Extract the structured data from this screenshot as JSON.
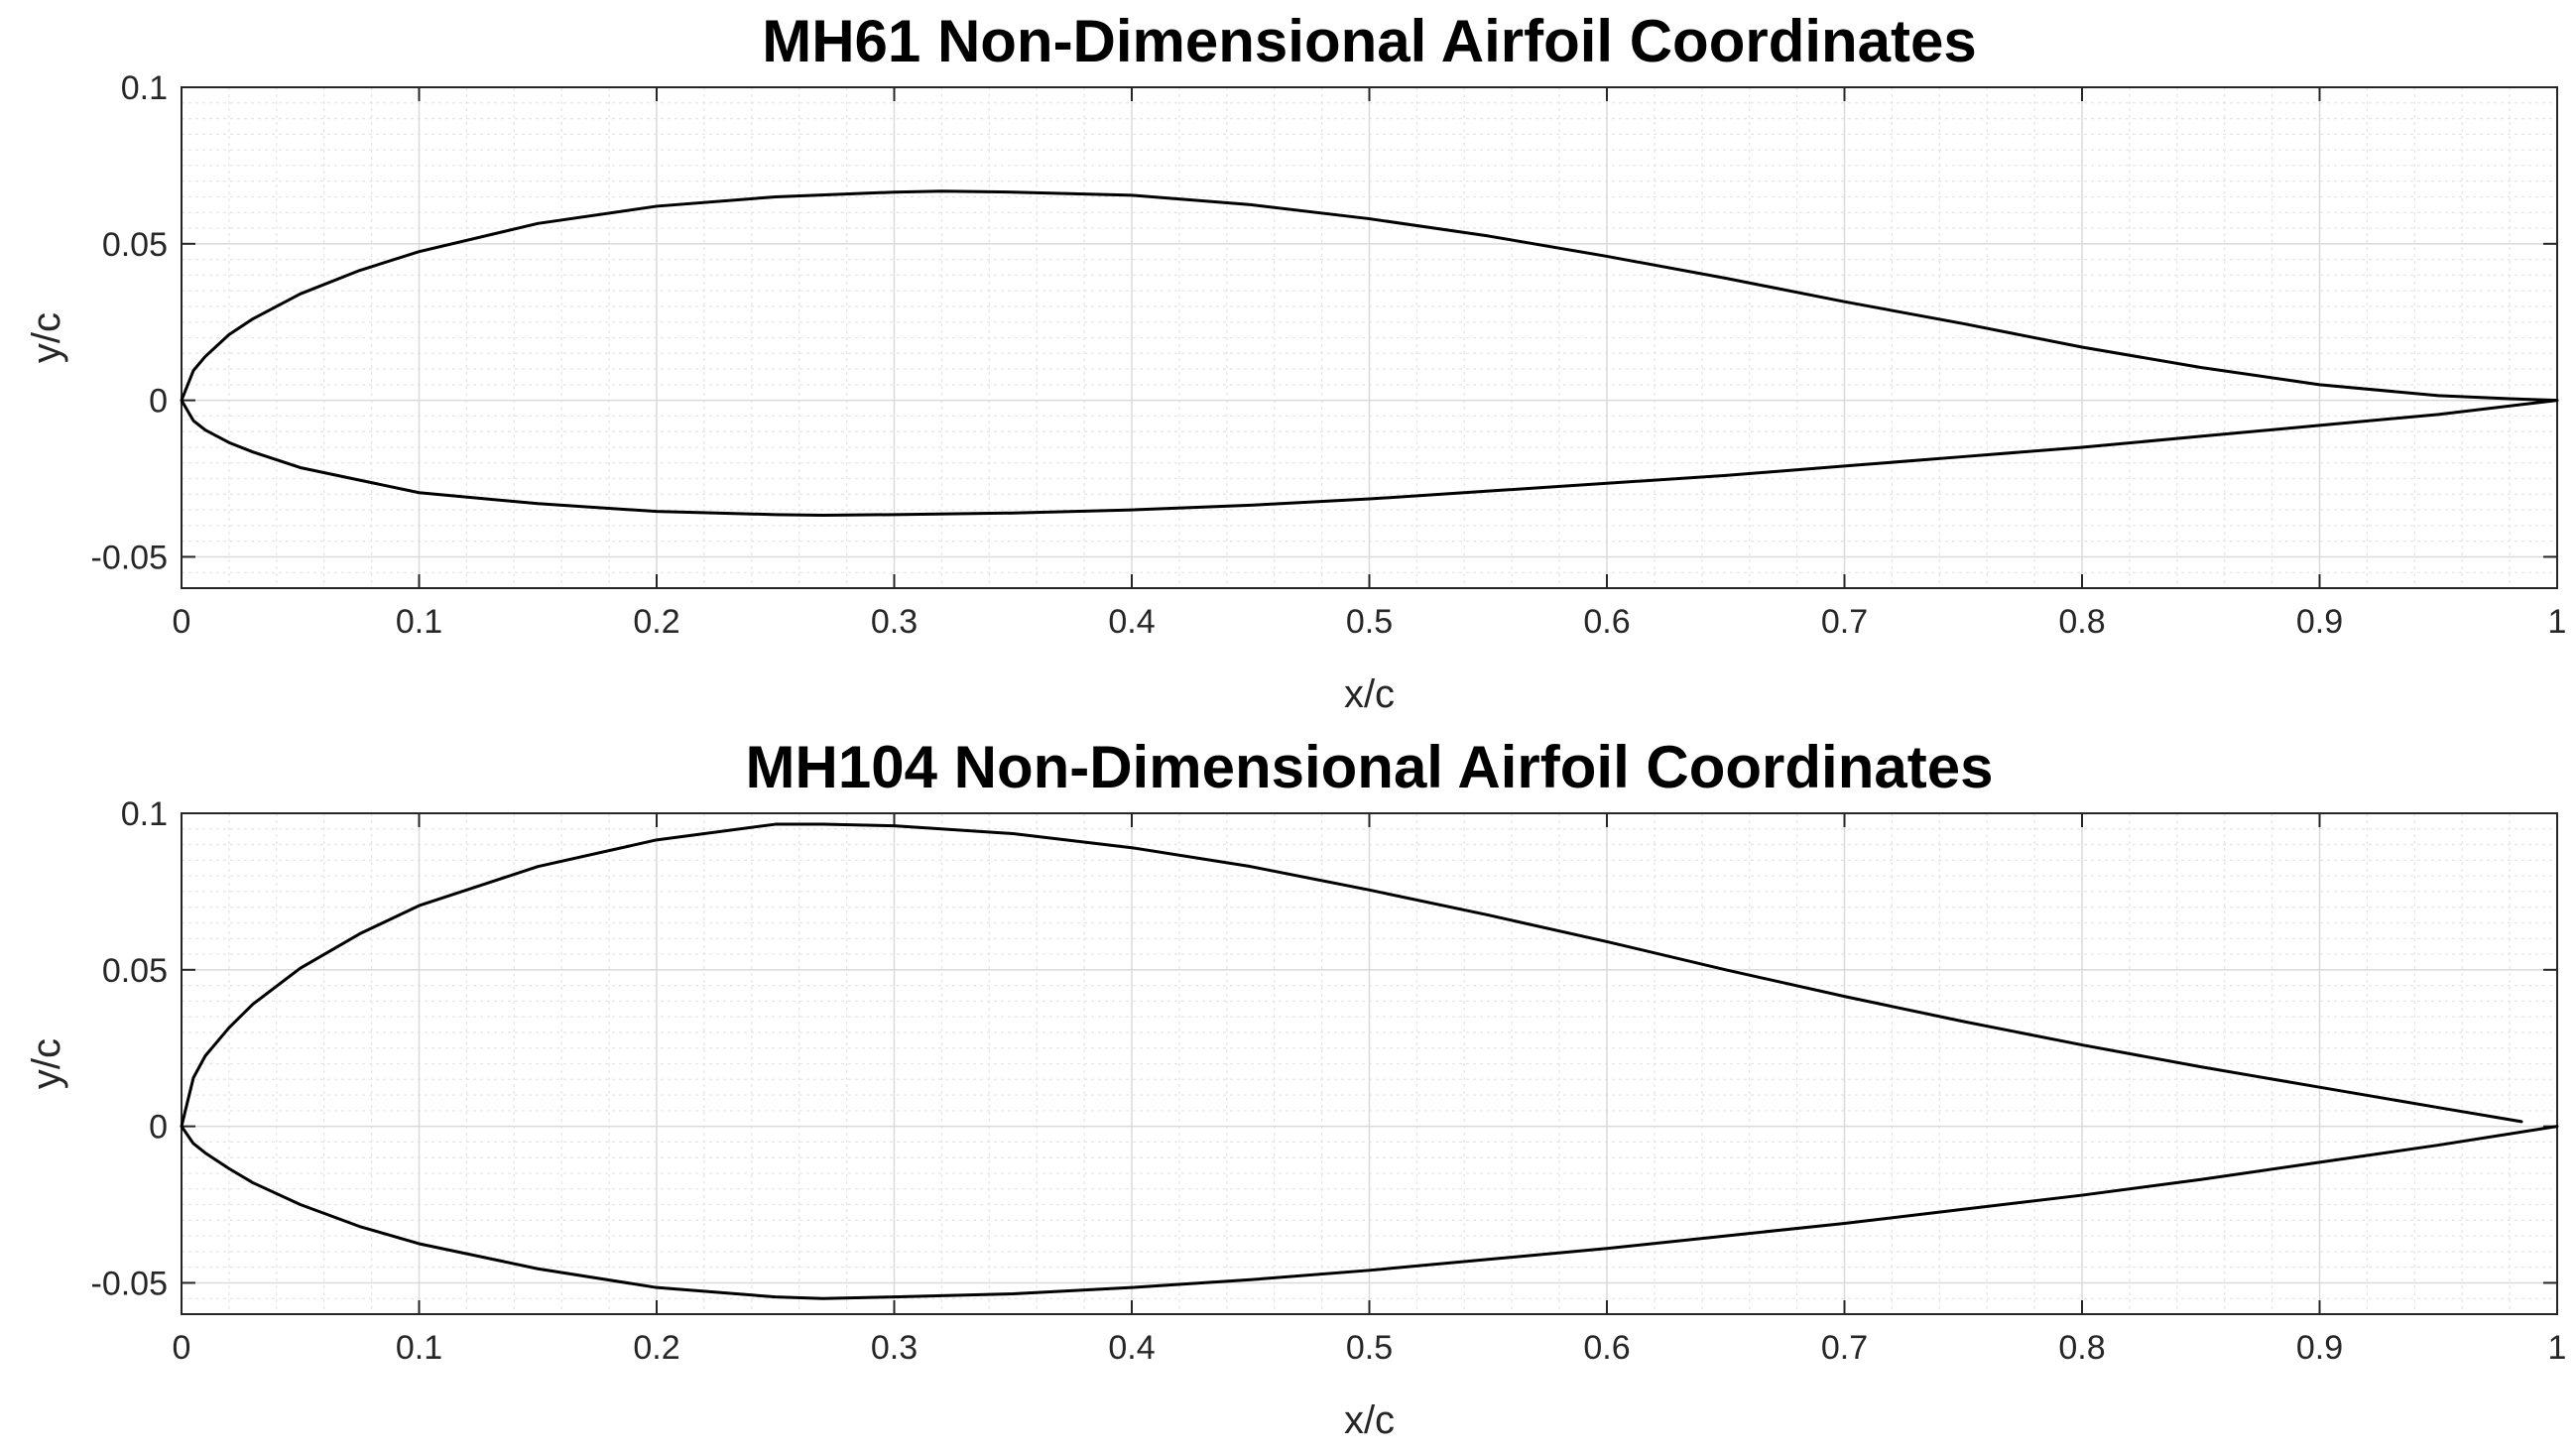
{
  "chart_data": [
    {
      "type": "line",
      "title": "MH61 Non-Dimensional Airfoil Coordinates",
      "xlabel": "x/c",
      "ylabel": "y/c",
      "xlim": [
        0,
        1
      ],
      "ylim": [
        -0.06,
        0.1
      ],
      "xticks": [
        0,
        0.1,
        0.2,
        0.3,
        0.4,
        0.5,
        0.6,
        0.7,
        0.8,
        0.9,
        1
      ],
      "xtick_labels": [
        "0",
        "0.1",
        "0.2",
        "0.3",
        "0.4",
        "0.5",
        "0.6",
        "0.7",
        "0.8",
        "0.9",
        "1"
      ],
      "yticks": [
        -0.05,
        0,
        0.05,
        0.1
      ],
      "ytick_labels": [
        "-0.05",
        "0",
        "0.05",
        "0.1"
      ],
      "grid": "major and minor",
      "series": [
        {
          "x": [
            1.0,
            0.98,
            0.95,
            0.9,
            0.85,
            0.8,
            0.75,
            0.7,
            0.65,
            0.6,
            0.55,
            0.5,
            0.45,
            0.4,
            0.35,
            0.32,
            0.3,
            0.25,
            0.2,
            0.15,
            0.1,
            0.075,
            0.05,
            0.03,
            0.02,
            0.01,
            0.005,
            0.0,
            0.005,
            0.01,
            0.02,
            0.03,
            0.05,
            0.075,
            0.1,
            0.15,
            0.2,
            0.25,
            0.27,
            0.3,
            0.35,
            0.4,
            0.45,
            0.5,
            0.55,
            0.6,
            0.65,
            0.7,
            0.75,
            0.8,
            0.85,
            0.9,
            0.95,
            1.0
          ],
          "y": [
            0.0,
            0.0005,
            0.0015,
            0.005,
            0.0105,
            0.017,
            0.0245,
            0.0315,
            0.039,
            0.046,
            0.0525,
            0.058,
            0.0625,
            0.0655,
            0.0665,
            0.0668,
            0.0665,
            0.065,
            0.062,
            0.0565,
            0.0475,
            0.0415,
            0.034,
            0.026,
            0.021,
            0.014,
            0.0095,
            0.0,
            -0.0065,
            -0.0095,
            -0.0135,
            -0.0165,
            -0.0215,
            -0.0255,
            -0.0295,
            -0.033,
            -0.0355,
            -0.0365,
            -0.0367,
            -0.0365,
            -0.036,
            -0.035,
            -0.0335,
            -0.0315,
            -0.029,
            -0.0265,
            -0.024,
            -0.021,
            -0.018,
            -0.015,
            -0.0115,
            -0.008,
            -0.0045,
            0.0
          ]
        }
      ]
    },
    {
      "type": "line",
      "title": "MH104 Non-Dimensional Airfoil Coordinates",
      "xlabel": "x/c",
      "ylabel": "y/c",
      "xlim": [
        0,
        1
      ],
      "ylim": [
        -0.06,
        0.1
      ],
      "xticks": [
        0,
        0.1,
        0.2,
        0.3,
        0.4,
        0.5,
        0.6,
        0.7,
        0.8,
        0.9,
        1
      ],
      "xtick_labels": [
        "0",
        "0.1",
        "0.2",
        "0.3",
        "0.4",
        "0.5",
        "0.6",
        "0.7",
        "0.8",
        "0.9",
        "1"
      ],
      "yticks": [
        -0.05,
        0,
        0.05,
        0.1
      ],
      "ytick_labels": [
        "-0.05",
        "0",
        "0.05",
        "0.1"
      ],
      "grid": "major and minor",
      "series": [
        {
          "x": [
            0.985,
            0.95,
            0.9,
            0.85,
            0.8,
            0.75,
            0.7,
            0.65,
            0.6,
            0.55,
            0.5,
            0.45,
            0.4,
            0.35,
            0.3,
            0.27,
            0.25,
            0.2,
            0.15,
            0.1,
            0.075,
            0.05,
            0.03,
            0.02,
            0.01,
            0.005,
            0.0,
            0.005,
            0.01,
            0.02,
            0.03,
            0.05,
            0.075,
            0.1,
            0.15,
            0.2,
            0.25,
            0.27,
            0.3,
            0.35,
            0.4,
            0.45,
            0.5,
            0.55,
            0.6,
            0.65,
            0.7,
            0.75,
            0.8,
            0.85,
            0.9,
            0.95,
            1.0
          ],
          "y": [
            0.0015,
            0.006,
            0.0125,
            0.019,
            0.026,
            0.0335,
            0.0415,
            0.05,
            0.059,
            0.0675,
            0.0755,
            0.083,
            0.089,
            0.0935,
            0.096,
            0.0965,
            0.0965,
            0.0915,
            0.083,
            0.0705,
            0.0615,
            0.0505,
            0.039,
            0.0315,
            0.0225,
            0.0155,
            0.0,
            -0.0055,
            -0.0085,
            -0.0135,
            -0.018,
            -0.025,
            -0.032,
            -0.0375,
            -0.0455,
            -0.0515,
            -0.0545,
            -0.055,
            -0.0545,
            -0.0535,
            -0.0515,
            -0.049,
            -0.046,
            -0.0425,
            -0.039,
            -0.035,
            -0.031,
            -0.0265,
            -0.022,
            -0.017,
            -0.0115,
            -0.006,
            0.0
          ]
        }
      ]
    }
  ]
}
